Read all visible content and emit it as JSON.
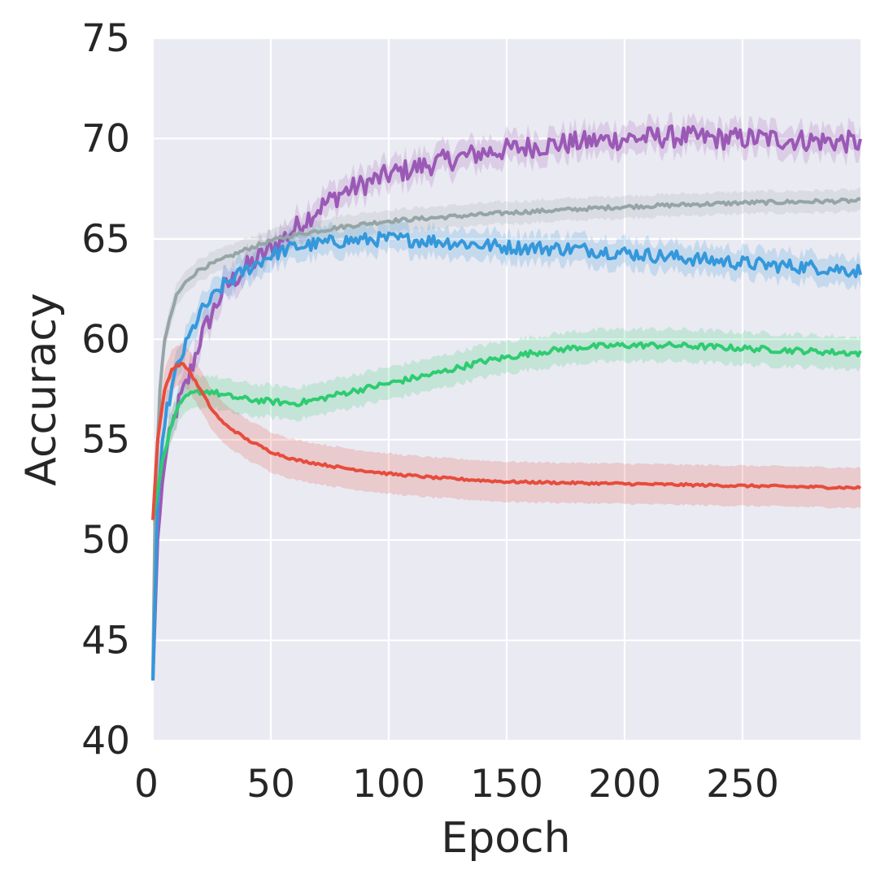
{
  "chart_data": {
    "type": "line",
    "title": "",
    "xlabel": "Epoch",
    "ylabel": "Accuracy",
    "xlim": [
      0,
      300
    ],
    "ylim": [
      40,
      75
    ],
    "xticks": [
      0,
      50,
      100,
      150,
      200,
      250
    ],
    "yticks": [
      40,
      45,
      50,
      55,
      60,
      65,
      70,
      75
    ],
    "grid": true,
    "legend": "none",
    "series": [
      {
        "name": "purple",
        "color": "#9b59b6",
        "noise": 0.55,
        "band": 0.7,
        "x": [
          0,
          2,
          5,
          10,
          15,
          20,
          30,
          40,
          50,
          60,
          70,
          80,
          100,
          120,
          140,
          160,
          180,
          200,
          220,
          240,
          260,
          280,
          300
        ],
        "y": [
          43,
          50,
          54,
          56.5,
          58,
          60,
          62.5,
          63.6,
          64.5,
          65.5,
          66.5,
          67.3,
          68.2,
          68.8,
          69.3,
          69.6,
          69.8,
          70.0,
          70.1,
          70.0,
          70.0,
          69.9,
          69.8
        ]
      },
      {
        "name": "gray",
        "color": "#95a5a6",
        "noise": 0.1,
        "band": 0.55,
        "x": [
          0,
          1,
          3,
          5,
          10,
          15,
          20,
          30,
          40,
          50,
          60,
          80,
          100,
          150,
          200,
          250,
          300
        ],
        "y": [
          43.3,
          52,
          57.5,
          60,
          62.2,
          63,
          63.5,
          64,
          64.5,
          64.9,
          65.2,
          65.6,
          65.9,
          66.3,
          66.6,
          66.8,
          66.9
        ]
      },
      {
        "name": "blue",
        "color": "#3498db",
        "noise": 0.35,
        "band": 0.7,
        "x": [
          0,
          2,
          5,
          10,
          15,
          20,
          30,
          40,
          50,
          60,
          80,
          100,
          120,
          150,
          180,
          200,
          230,
          260,
          280,
          300
        ],
        "y": [
          43,
          52,
          56,
          58.5,
          60,
          61.3,
          62.7,
          63.5,
          64.2,
          64.6,
          64.9,
          65.0,
          64.9,
          64.6,
          64.5,
          64.3,
          64.0,
          63.7,
          63.6,
          63.4
        ]
      },
      {
        "name": "green",
        "color": "#2ecc71",
        "noise": 0.15,
        "band": 0.8,
        "x": [
          0,
          2,
          5,
          10,
          15,
          20,
          25,
          30,
          40,
          50,
          60,
          70,
          80,
          100,
          120,
          140,
          160,
          180,
          200,
          220,
          240,
          260,
          280,
          300
        ],
        "y": [
          51,
          52.5,
          54.5,
          56.5,
          57.2,
          57.4,
          57.4,
          57.2,
          57.0,
          56.9,
          56.8,
          57.0,
          57.3,
          57.8,
          58.3,
          58.9,
          59.3,
          59.6,
          59.7,
          59.7,
          59.6,
          59.5,
          59.4,
          59.3
        ]
      },
      {
        "name": "red",
        "color": "#e74c3c",
        "noise": 0.06,
        "band": 1.0,
        "x": [
          0,
          2,
          5,
          8,
          12,
          15,
          20,
          25,
          30,
          40,
          50,
          60,
          70,
          80,
          100,
          120,
          150,
          200,
          250,
          300
        ],
        "y": [
          51,
          55,
          57.5,
          58.5,
          58.8,
          58.5,
          57.5,
          56.5,
          55.8,
          55,
          54.4,
          54,
          53.8,
          53.6,
          53.3,
          53.1,
          52.9,
          52.8,
          52.7,
          52.6
        ]
      }
    ]
  }
}
